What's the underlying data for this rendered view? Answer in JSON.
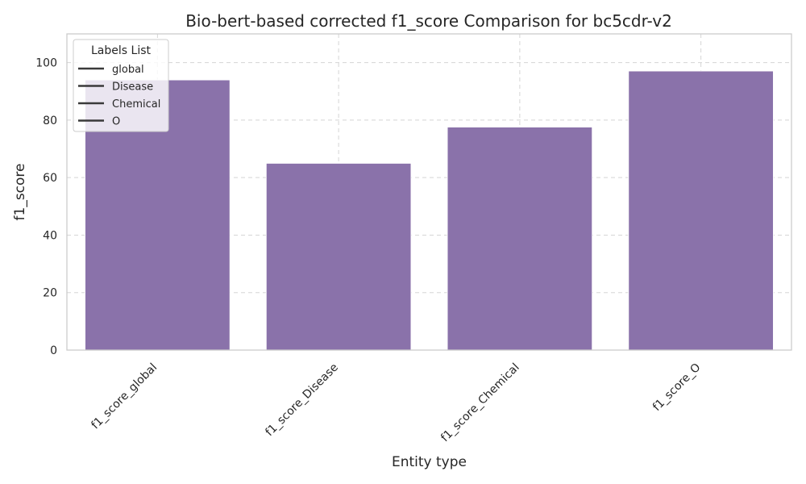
{
  "chart_data": {
    "type": "bar",
    "title": "Bio-bert-based corrected f1_score Comparison for bc5cdr-v2",
    "xlabel": "Entity type",
    "ylabel": "f1_score",
    "categories": [
      "f1_score_global",
      "f1_score_Disease",
      "f1_score_Chemical",
      "f1_score_O"
    ],
    "values": [
      94.0,
      65.0,
      77.6,
      97.1
    ],
    "ylim": [
      0,
      110
    ],
    "yticks": [
      0,
      20,
      40,
      60,
      80,
      100
    ],
    "bar_color": "#8a72aa",
    "grid": true,
    "legend": {
      "title": "Labels List",
      "placement": "top-left",
      "entries": [
        "global",
        "Disease",
        "Chemical",
        "O"
      ],
      "line_color": "#3a3a3a"
    }
  }
}
